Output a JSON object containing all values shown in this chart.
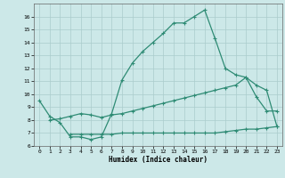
{
  "line1_x": [
    0,
    1,
    2,
    3,
    4,
    5,
    6,
    7,
    8,
    9,
    10,
    11,
    12,
    13,
    14,
    15,
    16,
    17,
    18,
    19,
    20,
    21,
    22,
    23
  ],
  "line1_y": [
    9.5,
    8.3,
    7.8,
    6.7,
    6.7,
    6.5,
    6.7,
    8.5,
    11.1,
    12.4,
    13.3,
    14.0,
    14.7,
    15.5,
    15.5,
    16.0,
    16.5,
    14.3,
    12.0,
    11.5,
    11.3,
    9.8,
    8.7,
    8.7
  ],
  "line2_x": [
    1,
    2,
    3,
    4,
    5,
    6,
    7,
    8,
    9,
    10,
    11,
    12,
    13,
    14,
    15,
    16,
    17,
    18,
    19,
    20,
    21,
    22,
    23
  ],
  "line2_y": [
    8.0,
    8.1,
    8.3,
    8.5,
    8.4,
    8.2,
    8.4,
    8.5,
    8.7,
    8.9,
    9.1,
    9.3,
    9.5,
    9.7,
    9.9,
    10.1,
    10.3,
    10.5,
    10.7,
    11.3,
    10.7,
    10.3,
    7.5
  ],
  "line3_x": [
    3,
    4,
    5,
    6,
    7,
    8,
    9,
    10,
    11,
    12,
    13,
    14,
    15,
    16,
    17,
    18,
    19,
    20,
    21,
    22,
    23
  ],
  "line3_y": [
    6.9,
    6.9,
    6.9,
    6.9,
    6.9,
    7.0,
    7.0,
    7.0,
    7.0,
    7.0,
    7.0,
    7.0,
    7.0,
    7.0,
    7.0,
    7.1,
    7.2,
    7.3,
    7.3,
    7.4,
    7.5
  ],
  "color": "#2e8b74",
  "bg_color": "#cce8e8",
  "grid_color": "#aacccc",
  "xlabel": "Humidex (Indice chaleur)",
  "xlim": [
    -0.5,
    23.5
  ],
  "ylim": [
    6,
    17
  ],
  "yticks": [
    6,
    7,
    8,
    9,
    10,
    11,
    12,
    13,
    14,
    15,
    16
  ],
  "xticks": [
    0,
    1,
    2,
    3,
    4,
    5,
    6,
    7,
    8,
    9,
    10,
    11,
    12,
    13,
    14,
    15,
    16,
    17,
    18,
    19,
    20,
    21,
    22,
    23
  ],
  "marker": "+",
  "markersize": 3,
  "linewidth": 0.9
}
